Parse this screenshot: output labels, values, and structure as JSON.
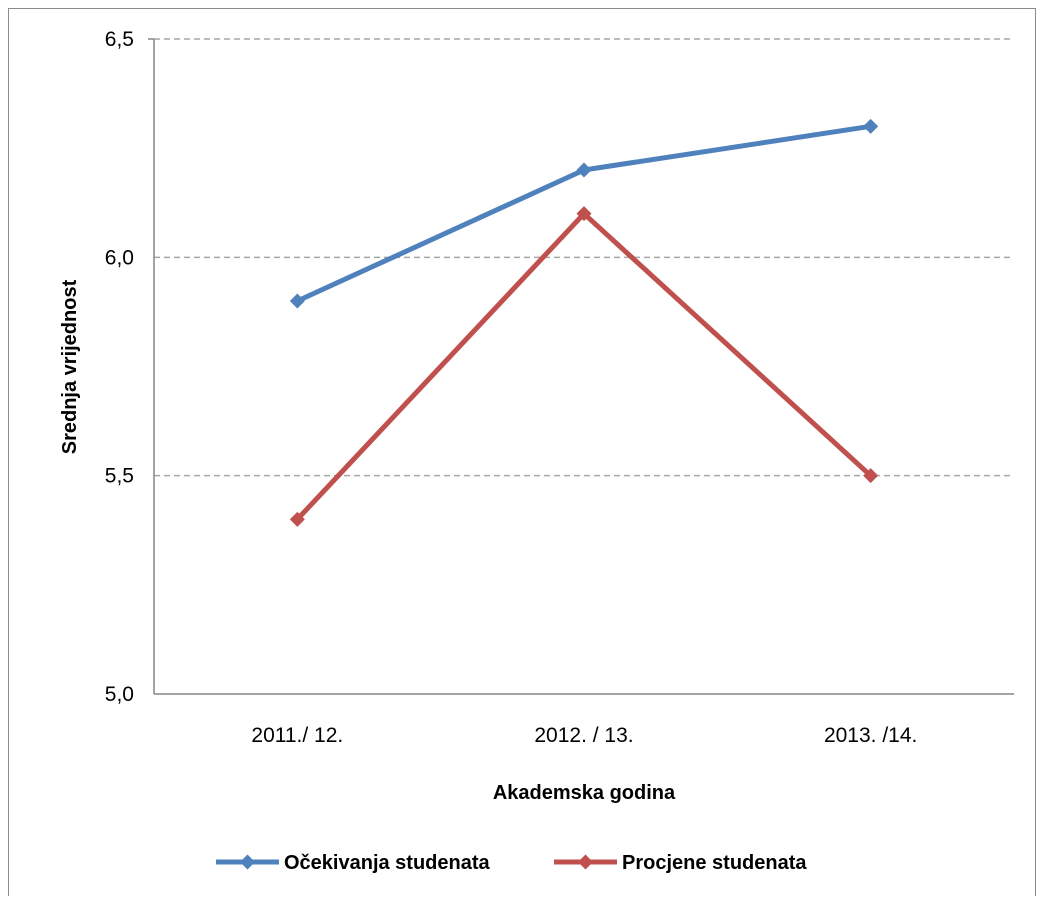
{
  "chart_data": {
    "type": "line",
    "title": "",
    "xlabel": "Akademska godina",
    "ylabel": "Srednja vrijednost",
    "categories": [
      "2011./ 12.",
      "2012. / 13.",
      "2013. /14."
    ],
    "series": [
      {
        "name": "Očekivanja studenata",
        "values": [
          5.9,
          6.2,
          6.3
        ],
        "color": "#4f81bd",
        "marker": "diamond"
      },
      {
        "name": "Procjene studenata",
        "values": [
          5.4,
          6.1,
          5.5
        ],
        "color": "#c0504d",
        "marker": "diamond"
      }
    ],
    "ylim": [
      5.0,
      6.5
    ],
    "yticks": [
      "5,0",
      "5,5",
      "6,0",
      "6,5"
    ],
    "ytick_values": [
      5.0,
      5.5,
      6.0,
      6.5
    ],
    "grid": "horizontal-dashed",
    "legend_position": "bottom"
  }
}
